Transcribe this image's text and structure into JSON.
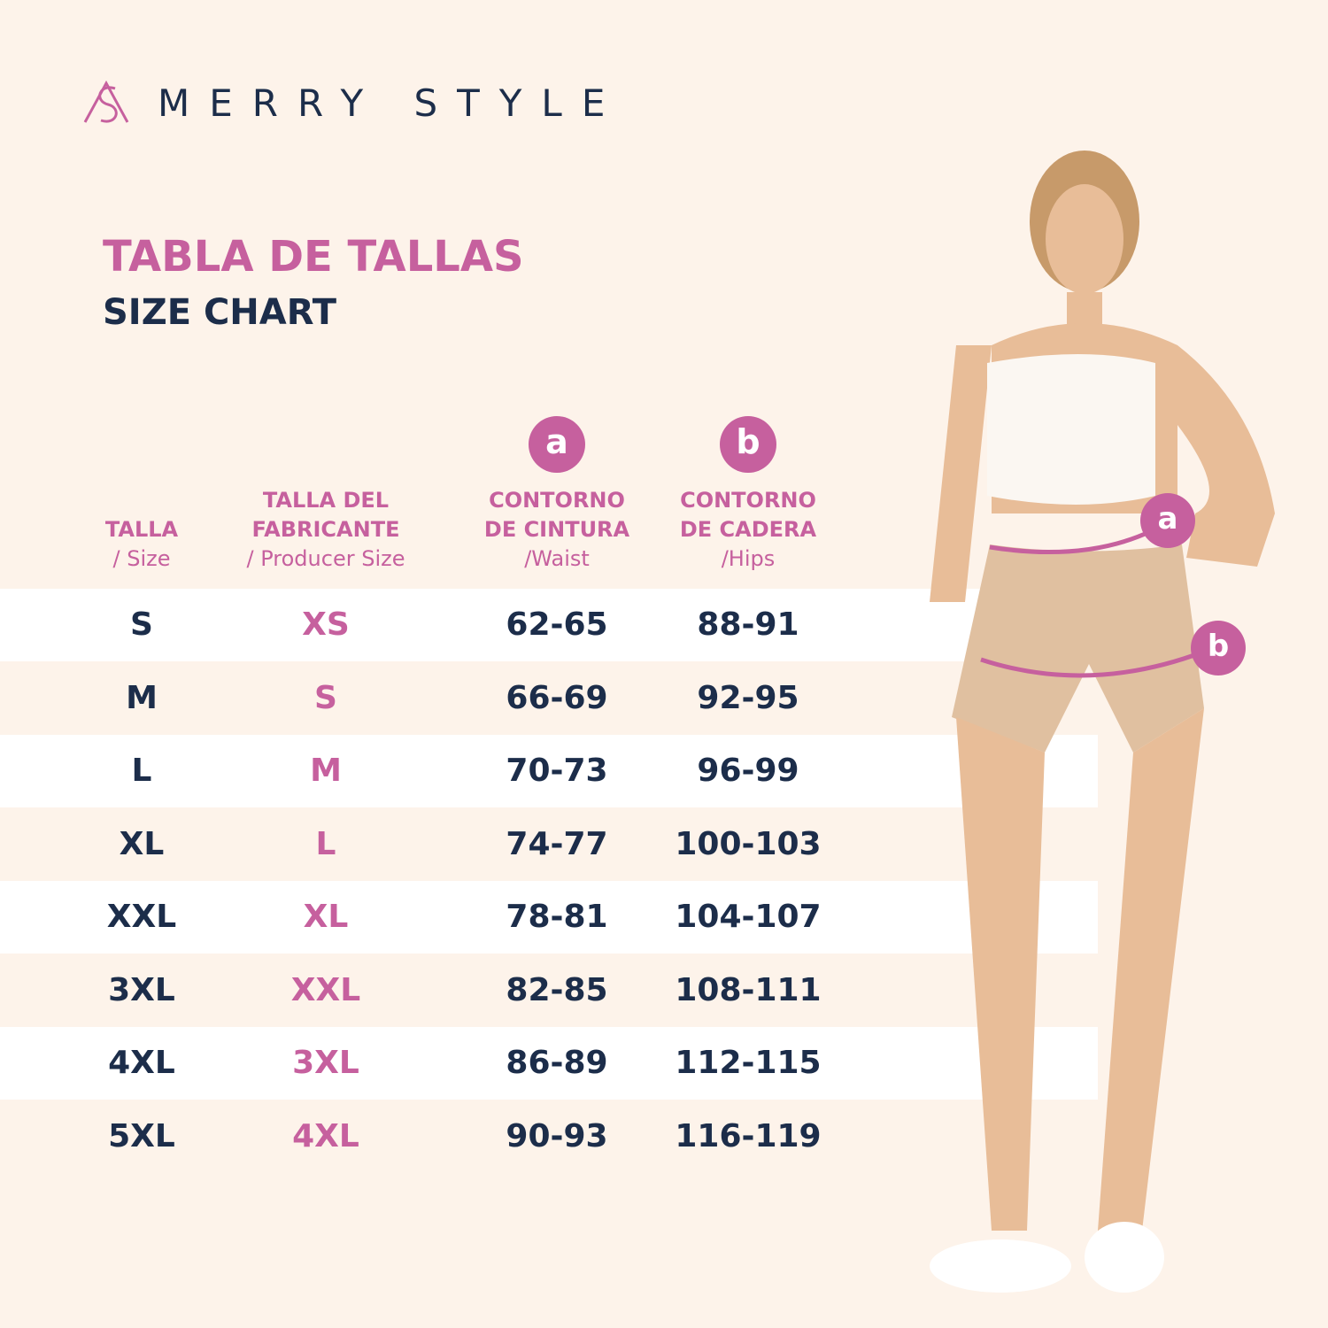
{
  "brand": "MERRY STYLE",
  "title": "TABLA DE TALLAS",
  "subtitle": "SIZE CHART",
  "table": {
    "columns": [
      {
        "lines": [
          "TALLA"
        ],
        "sub": "/ Size"
      },
      {
        "lines": [
          "TALLA DEL",
          "FABRICANTE"
        ],
        "sub": "/ Producer Size"
      },
      {
        "badge": "a",
        "lines": [
          "CONTORNO",
          "DE CINTURA"
        ],
        "sub": "/Waist"
      },
      {
        "badge": "b",
        "lines": [
          "CONTORNO",
          "DE CADERA"
        ],
        "sub": "/Hips"
      }
    ],
    "rows": [
      [
        "S",
        "XS",
        "62-65",
        "88-91"
      ],
      [
        "M",
        "S",
        "66-69",
        "92-95"
      ],
      [
        "L",
        "M",
        "70-73",
        "96-99"
      ],
      [
        "XL",
        "L",
        "74-77",
        "100-103"
      ],
      [
        "XXL",
        "XL",
        "78-81",
        "104-107"
      ],
      [
        "3XL",
        "XXL",
        "82-85",
        "108-111"
      ],
      [
        "4XL",
        "3XL",
        "86-89",
        "112-115"
      ],
      [
        "5XL",
        "4XL",
        "90-93",
        "116-119"
      ]
    ]
  },
  "figure": {
    "markers": [
      "a",
      "b"
    ]
  }
}
